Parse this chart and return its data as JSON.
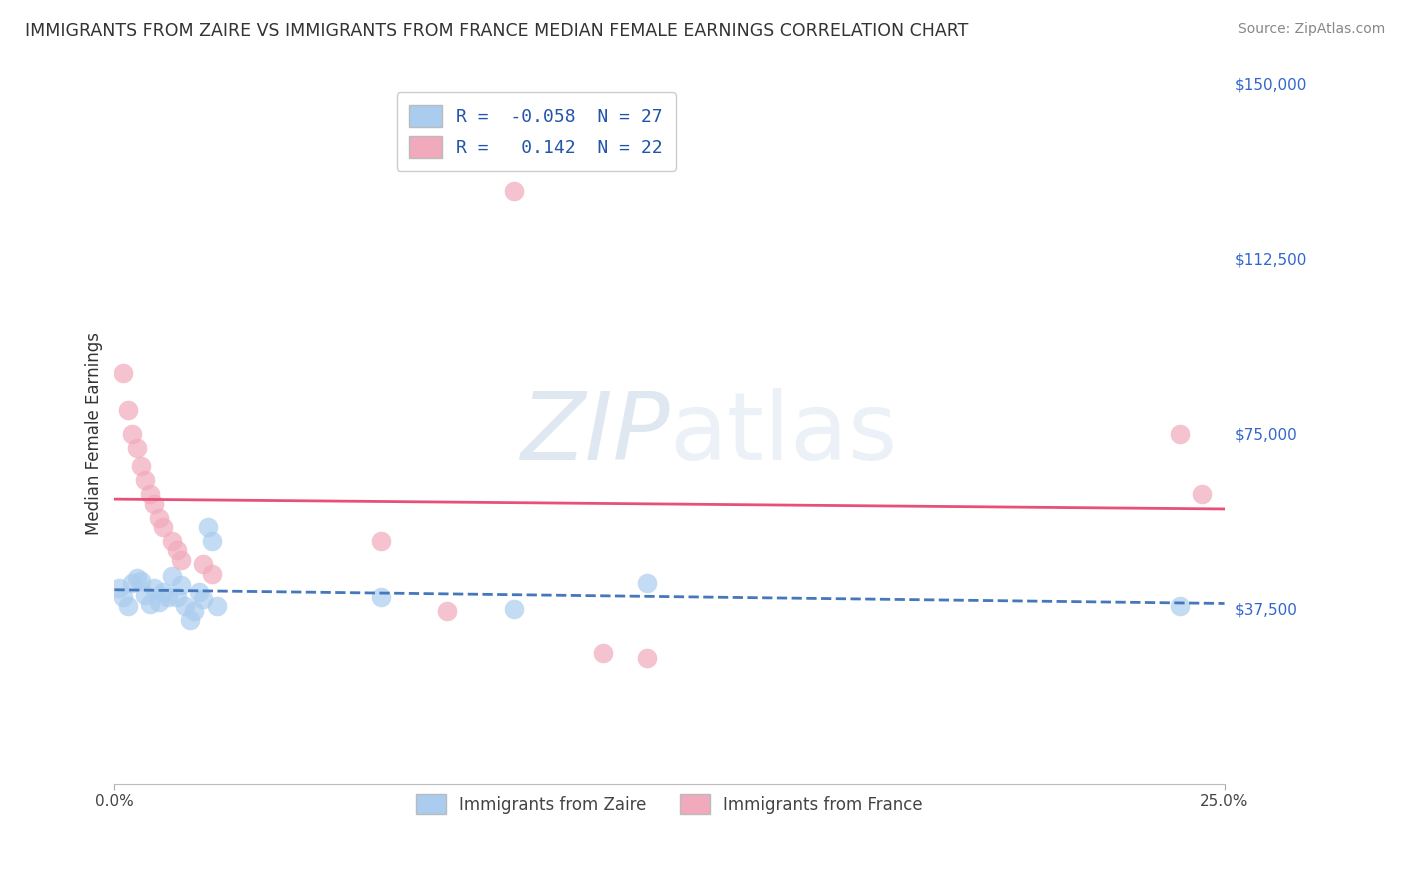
{
  "title": "IMMIGRANTS FROM ZAIRE VS IMMIGRANTS FROM FRANCE MEDIAN FEMALE EARNINGS CORRELATION CHART",
  "source": "Source: ZipAtlas.com",
  "ylabel": "Median Female Earnings",
  "xlim": [
    0.0,
    0.25
  ],
  "ylim": [
    0,
    150000
  ],
  "ytick_positions": [
    37500,
    75000,
    112500,
    150000
  ],
  "ytick_labels": [
    "$37,500",
    "$75,000",
    "$112,500",
    "$150,000"
  ],
  "xticks": [
    0.0,
    0.25
  ],
  "xtick_labels": [
    "0.0%",
    "25.0%"
  ],
  "bg_color": "#ffffff",
  "grid_color": "#d8d8d8",
  "zaire_color": "#aaccee",
  "france_color": "#f0aabb",
  "zaire_R": -0.058,
  "zaire_N": 27,
  "france_R": 0.142,
  "france_N": 22,
  "zaire_line_color": "#4477bb",
  "france_line_color": "#e8507a",
  "zaire_points": [
    [
      0.001,
      42000
    ],
    [
      0.002,
      40000
    ],
    [
      0.003,
      38000
    ],
    [
      0.004,
      43000
    ],
    [
      0.005,
      44000
    ],
    [
      0.006,
      43500
    ],
    [
      0.007,
      40500
    ],
    [
      0.008,
      38500
    ],
    [
      0.009,
      42000
    ],
    [
      0.01,
      39000
    ],
    [
      0.011,
      41000
    ],
    [
      0.012,
      40000
    ],
    [
      0.013,
      44500
    ],
    [
      0.014,
      40000
    ],
    [
      0.015,
      42500
    ],
    [
      0.016,
      38000
    ],
    [
      0.017,
      35000
    ],
    [
      0.018,
      37000
    ],
    [
      0.019,
      41000
    ],
    [
      0.02,
      39500
    ],
    [
      0.021,
      55000
    ],
    [
      0.022,
      52000
    ],
    [
      0.023,
      38000
    ],
    [
      0.06,
      40000
    ],
    [
      0.09,
      37500
    ],
    [
      0.12,
      43000
    ],
    [
      0.24,
      38000
    ]
  ],
  "france_points": [
    [
      0.002,
      88000
    ],
    [
      0.003,
      80000
    ],
    [
      0.004,
      75000
    ],
    [
      0.005,
      72000
    ],
    [
      0.006,
      68000
    ],
    [
      0.007,
      65000
    ],
    [
      0.008,
      62000
    ],
    [
      0.009,
      60000
    ],
    [
      0.01,
      57000
    ],
    [
      0.011,
      55000
    ],
    [
      0.013,
      52000
    ],
    [
      0.014,
      50000
    ],
    [
      0.015,
      48000
    ],
    [
      0.02,
      47000
    ],
    [
      0.022,
      45000
    ],
    [
      0.06,
      52000
    ],
    [
      0.075,
      37000
    ],
    [
      0.09,
      127000
    ],
    [
      0.11,
      28000
    ],
    [
      0.12,
      27000
    ],
    [
      0.24,
      75000
    ],
    [
      0.245,
      62000
    ]
  ]
}
